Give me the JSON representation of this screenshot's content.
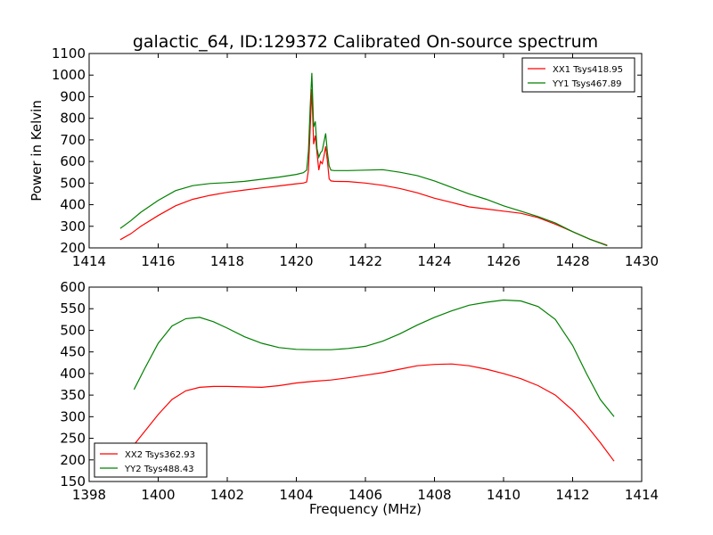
{
  "chart_data": [
    {
      "type": "line",
      "title": "galactic_64, ID:129372 Calibrated On-source spectrum",
      "xlabel": "",
      "ylabel": "Power in Kelvin",
      "xlim": [
        1414,
        1430
      ],
      "ylim": [
        200,
        1100
      ],
      "xticks": [
        "1414",
        "1416",
        "1418",
        "1420",
        "1422",
        "1424",
        "1426",
        "1428",
        "1430"
      ],
      "yticks": [
        "200",
        "300",
        "400",
        "500",
        "600",
        "700",
        "800",
        "900",
        "1000",
        "1100"
      ],
      "legend_position": "top-right",
      "grid": false,
      "series": [
        {
          "name": "XX1 Tsys418.95",
          "color": "#ff0000",
          "x": [
            1414.9,
            1415.2,
            1415.5,
            1416.0,
            1416.5,
            1417.0,
            1417.5,
            1418.0,
            1418.5,
            1419.0,
            1419.5,
            1420.0,
            1420.2,
            1420.3,
            1420.35,
            1420.4,
            1420.45,
            1420.5,
            1420.55,
            1420.6,
            1420.65,
            1420.7,
            1420.75,
            1420.8,
            1420.85,
            1420.9,
            1420.95,
            1421.0,
            1421.1,
            1421.5,
            1422.0,
            1422.5,
            1423.0,
            1423.5,
            1424.0,
            1424.5,
            1425.0,
            1425.5,
            1426.0,
            1426.5,
            1427.0,
            1427.5,
            1428.0,
            1428.5,
            1429.0
          ],
          "values": [
            238,
            265,
            300,
            350,
            395,
            425,
            443,
            457,
            468,
            478,
            487,
            497,
            500,
            505,
            560,
            750,
            935,
            680,
            720,
            640,
            560,
            600,
            590,
            625,
            670,
            600,
            520,
            510,
            508,
            507,
            500,
            490,
            475,
            455,
            430,
            410,
            390,
            380,
            370,
            360,
            340,
            310,
            275,
            240,
            212
          ]
        },
        {
          "name": "YY1 Tsys467.89",
          "color": "#008000",
          "x": [
            1414.9,
            1415.2,
            1415.5,
            1416.0,
            1416.5,
            1417.0,
            1417.5,
            1418.0,
            1418.5,
            1419.0,
            1419.5,
            1420.0,
            1420.2,
            1420.3,
            1420.35,
            1420.4,
            1420.45,
            1420.5,
            1420.55,
            1420.6,
            1420.65,
            1420.7,
            1420.75,
            1420.8,
            1420.85,
            1420.9,
            1420.95,
            1421.0,
            1421.1,
            1421.5,
            1422.0,
            1422.5,
            1423.0,
            1423.5,
            1424.0,
            1424.5,
            1425.0,
            1425.5,
            1426.0,
            1426.5,
            1427.0,
            1427.5,
            1428.0,
            1428.5,
            1429.0
          ],
          "values": [
            290,
            325,
            365,
            420,
            465,
            488,
            498,
            502,
            508,
            518,
            528,
            540,
            548,
            560,
            650,
            850,
            1010,
            760,
            785,
            660,
            620,
            640,
            650,
            690,
            730,
            640,
            580,
            560,
            558,
            558,
            560,
            562,
            550,
            535,
            510,
            480,
            450,
            425,
            395,
            370,
            345,
            315,
            275,
            240,
            210
          ]
        }
      ]
    },
    {
      "type": "line",
      "title": "",
      "xlabel": "Frequency (MHz)",
      "ylabel": "",
      "xlim": [
        1398,
        1414
      ],
      "ylim": [
        150,
        600
      ],
      "xticks": [
        "1398",
        "1400",
        "1402",
        "1404",
        "1406",
        "1408",
        "1410",
        "1412",
        "1414"
      ],
      "yticks": [
        "150",
        "200",
        "250",
        "300",
        "350",
        "400",
        "450",
        "500",
        "550",
        "600"
      ],
      "legend_position": "bottom-left",
      "grid": false,
      "series": [
        {
          "name": "XX2 Tsys362.93",
          "color": "#ff0000",
          "x": [
            1399.3,
            1399.6,
            1400.0,
            1400.4,
            1400.8,
            1401.2,
            1401.6,
            1402.0,
            1402.5,
            1403.0,
            1403.5,
            1404.0,
            1404.5,
            1405.0,
            1405.5,
            1406.0,
            1406.5,
            1407.0,
            1407.5,
            1408.0,
            1408.5,
            1409.0,
            1409.5,
            1410.0,
            1410.5,
            1411.0,
            1411.5,
            1412.0,
            1412.4,
            1412.8,
            1413.2
          ],
          "values": [
            235,
            265,
            305,
            340,
            360,
            368,
            370,
            370,
            369,
            368,
            372,
            378,
            382,
            385,
            390,
            396,
            402,
            410,
            418,
            421,
            422,
            418,
            410,
            400,
            388,
            372,
            350,
            315,
            280,
            240,
            197
          ]
        },
        {
          "name": "YY2 Tsys488.43",
          "color": "#008000",
          "x": [
            1399.3,
            1399.6,
            1400.0,
            1400.4,
            1400.8,
            1401.2,
            1401.6,
            1402.0,
            1402.5,
            1403.0,
            1403.5,
            1404.0,
            1404.5,
            1405.0,
            1405.5,
            1406.0,
            1406.5,
            1407.0,
            1407.5,
            1408.0,
            1408.5,
            1409.0,
            1409.5,
            1410.0,
            1410.5,
            1411.0,
            1411.5,
            1412.0,
            1412.4,
            1412.8,
            1413.2
          ],
          "values": [
            363,
            410,
            470,
            510,
            527,
            530,
            520,
            505,
            485,
            470,
            460,
            456,
            455,
            455,
            458,
            463,
            475,
            492,
            512,
            530,
            545,
            558,
            565,
            570,
            568,
            555,
            525,
            465,
            400,
            340,
            300
          ]
        }
      ]
    }
  ]
}
